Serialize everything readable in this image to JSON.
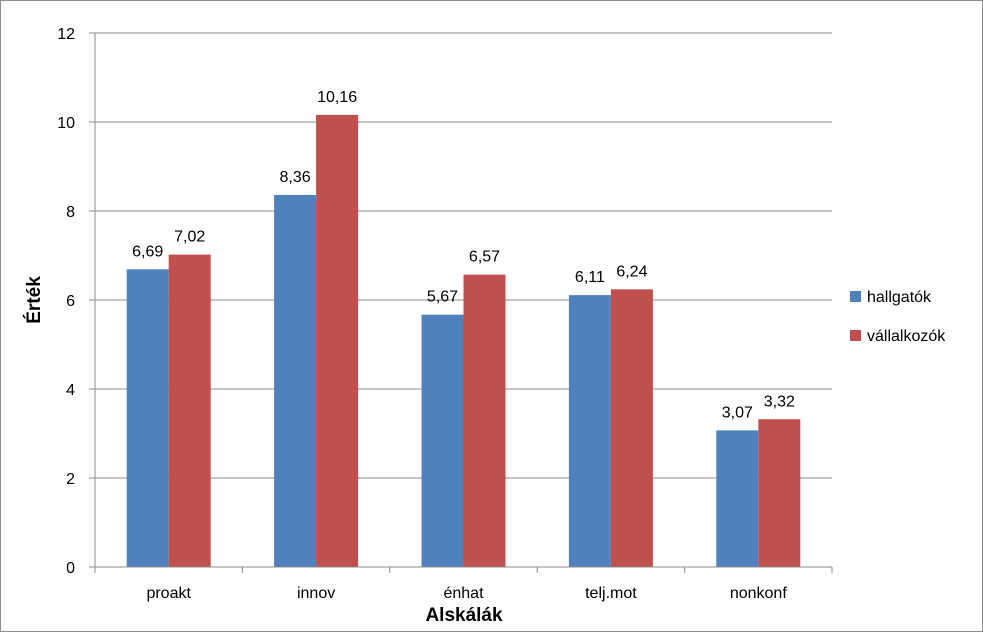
{
  "chart_data": {
    "type": "bar",
    "title": "",
    "xlabel": "Alskálák",
    "ylabel": "Érték",
    "categories": [
      "proakt",
      "innov",
      "énhat",
      "telj.mot",
      "nonkonf"
    ],
    "series": [
      {
        "name": "hallgatók",
        "color": "#4f81bd",
        "values": [
          6.69,
          8.36,
          5.67,
          6.11,
          3.07
        ],
        "labels": [
          "6,69",
          "8,36",
          "5,67",
          "6,11",
          "3,07"
        ]
      },
      {
        "name": "vállalkozók",
        "color": "#c0504d",
        "values": [
          7.02,
          10.16,
          6.57,
          6.24,
          3.32
        ],
        "labels": [
          "7,02",
          "10,16",
          "6,57",
          "6,24",
          "3,32"
        ]
      }
    ],
    "ylim": [
      0,
      12
    ],
    "yticks": [
      "0",
      "2",
      "4",
      "6",
      "8",
      "10",
      "12"
    ],
    "grid": true,
    "legend_position": "right"
  }
}
